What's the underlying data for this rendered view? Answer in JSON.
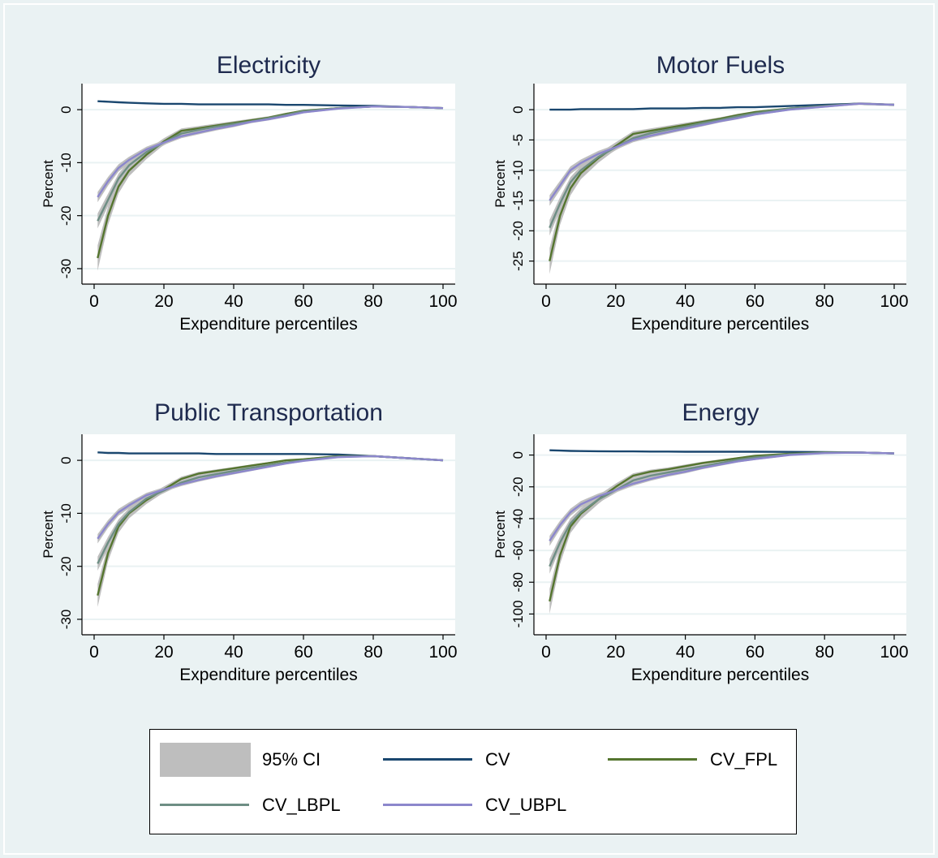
{
  "chart_data": [
    {
      "type": "line",
      "title": "Electricity",
      "xlabel": "Expenditure percentiles",
      "ylabel": "Percent",
      "xlim": [
        0,
        100
      ],
      "ylim": [
        -32,
        4
      ],
      "xticks": [
        "0",
        "20",
        "40",
        "60",
        "80",
        "100"
      ],
      "yticks": [
        "0",
        "-10",
        "-20",
        "-30"
      ],
      "x": [
        1,
        4,
        7,
        10,
        15,
        20,
        25,
        30,
        35,
        40,
        45,
        50,
        55,
        60,
        70,
        80,
        90,
        100
      ],
      "series": [
        {
          "name": "CV",
          "values": [
            1.6,
            1.5,
            1.4,
            1.3,
            1.2,
            1.1,
            1.1,
            1.0,
            1.0,
            1.0,
            1.0,
            1.0,
            0.9,
            0.9,
            0.8,
            0.7,
            0.5,
            0.3
          ]
        },
        {
          "name": "CV_FPL",
          "values": [
            -28,
            -20,
            -14.5,
            -11.5,
            -8.5,
            -6,
            -4,
            -3.5,
            -3,
            -2.5,
            -2,
            -1.5,
            -0.8,
            -0.2,
            0.3,
            0.6,
            0.5,
            0.3
          ]
        },
        {
          "name": "CV_LBPL",
          "values": [
            -21,
            -17,
            -13,
            -10.5,
            -8,
            -6.2,
            -4.5,
            -3.8,
            -3.2,
            -2.7,
            -2.2,
            -1.6,
            -1,
            -0.3,
            0.3,
            0.6,
            0.5,
            0.3
          ]
        },
        {
          "name": "CV_UBPL",
          "values": [
            -16.5,
            -13.5,
            -11,
            -9.5,
            -7.5,
            -6.2,
            -5,
            -4.3,
            -3.6,
            -3,
            -2.3,
            -1.8,
            -1.2,
            -0.5,
            0.2,
            0.6,
            0.5,
            0.3
          ]
        }
      ]
    },
    {
      "type": "line",
      "title": "Motor Fuels",
      "xlabel": "Expenditure percentiles",
      "ylabel": "Percent",
      "xlim": [
        0,
        100
      ],
      "ylim": [
        -28,
        3.5
      ],
      "xticks": [
        "0",
        "20",
        "40",
        "60",
        "80",
        "100"
      ],
      "yticks": [
        "0",
        "-5",
        "-10",
        "-15",
        "-20",
        "-25"
      ],
      "x": [
        1,
        4,
        7,
        10,
        15,
        20,
        25,
        30,
        35,
        40,
        45,
        50,
        55,
        60,
        70,
        80,
        90,
        100
      ],
      "series": [
        {
          "name": "CV",
          "values": [
            0.0,
            0.0,
            0.0,
            0.1,
            0.1,
            0.1,
            0.1,
            0.2,
            0.2,
            0.2,
            0.3,
            0.3,
            0.4,
            0.4,
            0.6,
            0.8,
            1.0,
            0.8
          ]
        },
        {
          "name": "CV_FPL",
          "values": [
            -25,
            -17.5,
            -13,
            -10.5,
            -8,
            -6,
            -4,
            -3.5,
            -3,
            -2.5,
            -2,
            -1.5,
            -0.9,
            -0.4,
            0.2,
            0.6,
            1.0,
            0.8
          ]
        },
        {
          "name": "CV_LBPL",
          "values": [
            -19.5,
            -15.5,
            -12,
            -10,
            -7.8,
            -6.2,
            -4.7,
            -3.9,
            -3.3,
            -2.8,
            -2.2,
            -1.7,
            -1.1,
            -0.6,
            0.2,
            0.6,
            1.0,
            0.8
          ]
        },
        {
          "name": "CV_UBPL",
          "values": [
            -15,
            -12.5,
            -10,
            -8.8,
            -7.3,
            -6.2,
            -5,
            -4.3,
            -3.7,
            -3.1,
            -2.5,
            -1.9,
            -1.4,
            -0.8,
            0.0,
            0.5,
            1.0,
            0.8
          ]
        }
      ]
    },
    {
      "type": "line",
      "title": "Public Transportation",
      "xlabel": "Expenditure percentiles",
      "ylabel": "Percent",
      "xlim": [
        0,
        100
      ],
      "ylim": [
        -32,
        4
      ],
      "xticks": [
        "0",
        "20",
        "40",
        "60",
        "80",
        "100"
      ],
      "yticks": [
        "0",
        "-10",
        "-20",
        "-30"
      ],
      "x": [
        1,
        4,
        7,
        10,
        15,
        20,
        25,
        30,
        35,
        40,
        45,
        50,
        55,
        60,
        70,
        80,
        90,
        100
      ],
      "series": [
        {
          "name": "CV",
          "values": [
            1.5,
            1.4,
            1.4,
            1.3,
            1.3,
            1.3,
            1.3,
            1.3,
            1.2,
            1.2,
            1.2,
            1.2,
            1.2,
            1.2,
            1.1,
            0.8,
            0.4,
            0.0
          ]
        },
        {
          "name": "CV_FPL",
          "values": [
            -25.5,
            -17.5,
            -12.5,
            -10,
            -7.5,
            -5.5,
            -3.5,
            -2.5,
            -2,
            -1.5,
            -1,
            -0.5,
            0,
            0.2,
            0.8,
            0.8,
            0.4,
            0.0
          ]
        },
        {
          "name": "CV_LBPL",
          "values": [
            -19.5,
            -15.5,
            -12,
            -9.8,
            -7.2,
            -5.7,
            -4.2,
            -3.2,
            -2.6,
            -2,
            -1.4,
            -0.9,
            -0.4,
            0,
            0.7,
            0.8,
            0.4,
            0.0
          ]
        },
        {
          "name": "CV_UBPL",
          "values": [
            -14.8,
            -12,
            -9.8,
            -8.5,
            -6.6,
            -5.5,
            -4.5,
            -3.7,
            -3,
            -2.4,
            -1.8,
            -1.2,
            -0.6,
            -0.1,
            0.6,
            0.8,
            0.4,
            0.0
          ]
        }
      ]
    },
    {
      "type": "line",
      "title": "Energy",
      "xlabel": "Expenditure percentiles",
      "ylabel": "Percent",
      "xlim": [
        0,
        100
      ],
      "ylim": [
        -110,
        10
      ],
      "xticks": [
        "0",
        "20",
        "40",
        "60",
        "80",
        "100"
      ],
      "yticks": [
        "0",
        "-20",
        "-40",
        "-60",
        "-80",
        "-100"
      ],
      "x": [
        1,
        4,
        7,
        10,
        15,
        20,
        25,
        30,
        35,
        40,
        45,
        50,
        55,
        60,
        70,
        80,
        90,
        100
      ],
      "series": [
        {
          "name": "CV",
          "values": [
            3,
            2.8,
            2.6,
            2.5,
            2.4,
            2.3,
            2.3,
            2.2,
            2.2,
            2.1,
            2.1,
            2.1,
            2.1,
            2.1,
            2.0,
            1.9,
            1.6,
            1.0
          ]
        },
        {
          "name": "CV_FPL",
          "values": [
            -92,
            -63,
            -45,
            -37,
            -28,
            -20,
            -13,
            -10.5,
            -9,
            -7,
            -5,
            -3.5,
            -2,
            -0.5,
            0.8,
            1.7,
            1.6,
            1.0
          ]
        },
        {
          "name": "CV_LBPL",
          "values": [
            -70,
            -55,
            -43,
            -36,
            -28,
            -22,
            -16,
            -13,
            -11,
            -9,
            -7,
            -5,
            -3,
            -1.5,
            0.5,
            1.5,
            1.6,
            1.0
          ]
        },
        {
          "name": "CV_UBPL",
          "values": [
            -54,
            -44,
            -36,
            -31,
            -26,
            -22,
            -18,
            -15,
            -12.5,
            -10.5,
            -8,
            -6,
            -4,
            -2.5,
            0,
            1.2,
            1.6,
            1.0
          ]
        }
      ]
    }
  ],
  "legend": {
    "items": [
      {
        "label": "95% CI",
        "kind": "band",
        "color": "#bebebe"
      },
      {
        "label": "CV",
        "kind": "line",
        "color": "#1a476f"
      },
      {
        "label": "CV_FPL",
        "kind": "line",
        "color": "#55752f"
      },
      {
        "label": "CV_LBPL",
        "kind": "line",
        "color": "#6e8e84"
      },
      {
        "label": "CV_UBPL",
        "kind": "line",
        "color": "#8c87cc"
      }
    ]
  },
  "colors": {
    "band": "#bebebe",
    "CV": "#1a476f",
    "CV_FPL": "#55752f",
    "CV_LBPL": "#6e8e84",
    "CV_UBPL": "#8c87cc",
    "title": "#1e2a4e",
    "grid": "#eaf2f3",
    "background": "#eaf2f3",
    "plot_background": "#ffffff"
  }
}
